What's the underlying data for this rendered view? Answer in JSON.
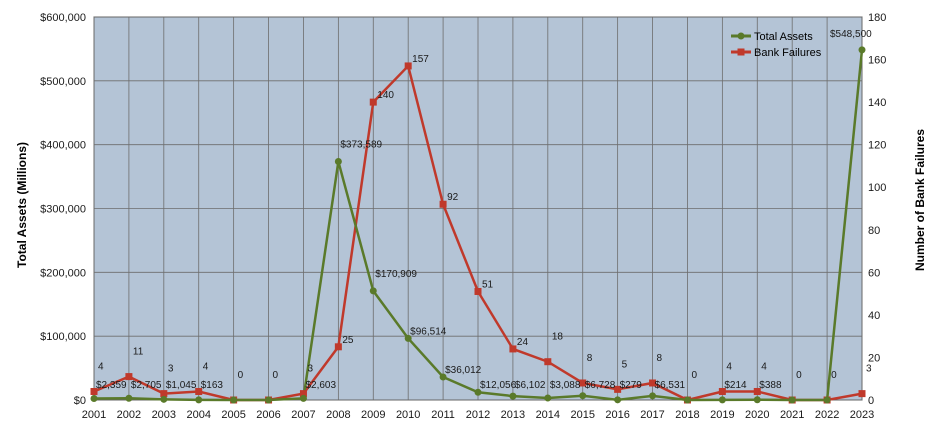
{
  "chart_data": {
    "type": "line",
    "title": "",
    "xlabel": "",
    "ylabel": "Total Assets (Millions)",
    "y2label": "Number of Bank Failures",
    "categories": [
      "2001",
      "2002",
      "2003",
      "2004",
      "2005",
      "2006",
      "2007",
      "2008",
      "2009",
      "2010",
      "2011",
      "2012",
      "2013",
      "2014",
      "2015",
      "2016",
      "2017",
      "2018",
      "2019",
      "2020",
      "2021",
      "2022",
      "2023"
    ],
    "ylim": [
      0,
      600000
    ],
    "y2lim": [
      0,
      180
    ],
    "yticks": [
      "$0",
      "$100,000",
      "$200,000",
      "$300,000",
      "$400,000",
      "$500,000",
      "$600,000"
    ],
    "y2ticks": [
      "0",
      "20",
      "40",
      "60",
      "80",
      "100",
      "120",
      "140",
      "160",
      "180"
    ],
    "grid": true,
    "legend_position": "top-right",
    "series": [
      {
        "name": "Total Assets",
        "axis": "left",
        "color": "#5a7a2a",
        "marker": "circle",
        "values": [
          2359,
          2705,
          1045,
          163,
          0,
          0,
          2603,
          373589,
          170909,
          96514,
          36012,
          12056,
          6102,
          3088,
          6728,
          279,
          6531,
          0,
          214,
          388,
          0,
          0,
          548500
        ],
        "labels": [
          "$2,359",
          "$2,705",
          "$1,045",
          "$163",
          "",
          "",
          "$2,603",
          "$373,589",
          "$170,909",
          "$96,514",
          "$36,012",
          "$12,056",
          "$6,102",
          "$3,088",
          "$6,728",
          "$279",
          "$6,531",
          "",
          "$214",
          "$388",
          "",
          "",
          "$548,500"
        ]
      },
      {
        "name": "Bank Failures",
        "axis": "right",
        "color": "#c0392b",
        "marker": "square",
        "values": [
          4,
          11,
          3,
          4,
          0,
          0,
          3,
          25,
          140,
          157,
          92,
          51,
          24,
          18,
          8,
          5,
          8,
          0,
          4,
          4,
          0,
          0,
          3
        ],
        "labels": [
          "4",
          "11",
          "3",
          "4",
          "0",
          "0",
          "3",
          "25",
          "140",
          "157",
          "92",
          "51",
          "24",
          "18",
          "8",
          "5",
          "8",
          "0",
          "4",
          "4",
          "0",
          "0",
          "3"
        ]
      }
    ],
    "colors": {
      "plot_background": "#b4c4d6",
      "grid": "#6d6d6d"
    }
  }
}
